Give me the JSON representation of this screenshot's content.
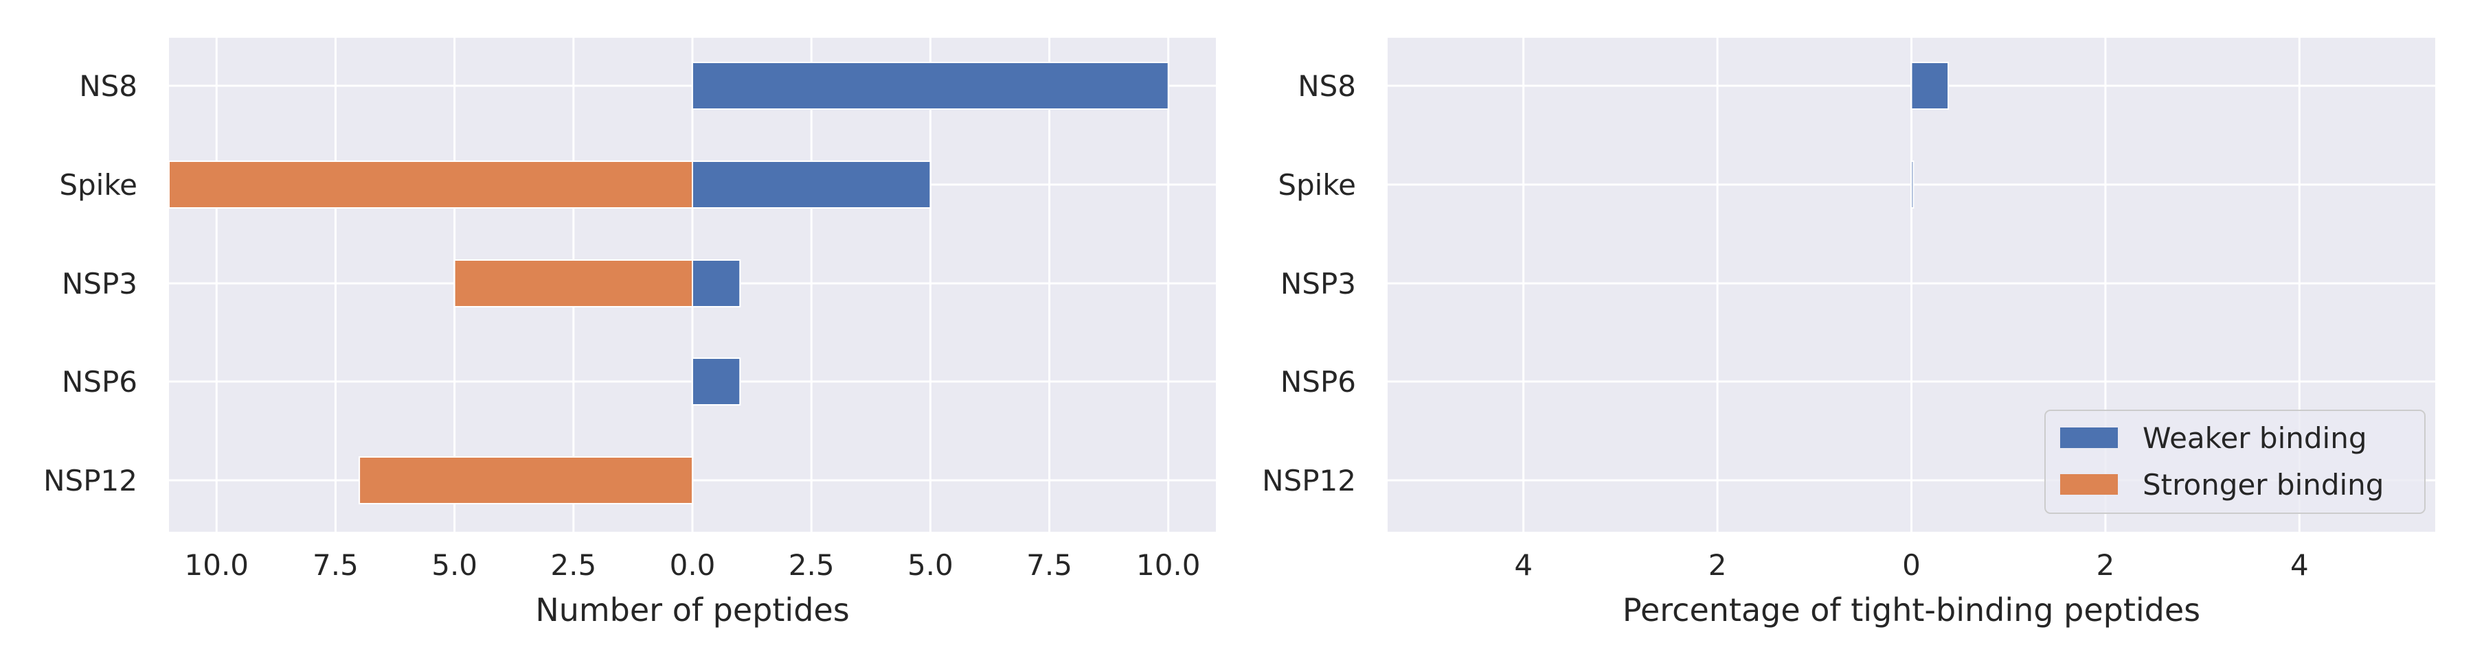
{
  "chart_data": [
    {
      "type": "bar",
      "orientation": "horizontal",
      "diverging": true,
      "categories": [
        "NS8",
        "Spike",
        "NSP3",
        "NSP6",
        "NSP12"
      ],
      "series": [
        {
          "name": "Weaker binding",
          "color": "#4c72b0",
          "values": [
            10,
            5,
            1,
            1,
            0
          ]
        },
        {
          "name": "Stronger binding",
          "color": "#dd8452",
          "values": [
            0,
            11,
            5,
            0,
            7
          ]
        }
      ],
      "xlabel": "Number of peptides",
      "xlim": [
        -11,
        11
      ],
      "xticks": [
        -10,
        -7.5,
        -5,
        -2.5,
        0,
        2.5,
        5,
        7.5,
        10
      ],
      "xtick_labels": [
        "10.0",
        "7.5",
        "5.0",
        "2.5",
        "0.0",
        "2.5",
        "5.0",
        "7.5",
        "10.0"
      ],
      "grid": true,
      "background": "#eaeaf2"
    },
    {
      "type": "bar",
      "orientation": "horizontal",
      "diverging": true,
      "categories": [
        "NS8",
        "Spike",
        "NSP3",
        "NSP6",
        "NSP12"
      ],
      "series": [
        {
          "name": "Weaker binding",
          "color": "#4c72b0",
          "values": [
            0.38,
            0.02,
            0,
            0,
            0
          ]
        },
        {
          "name": "Stronger binding",
          "color": "#dd8452",
          "values": [
            0,
            0,
            0,
            0,
            0
          ]
        }
      ],
      "xlabel": "Percentage of tight-binding peptides",
      "xlim": [
        -5.4,
        5.4
      ],
      "xticks": [
        -4,
        -2,
        0,
        2,
        4
      ],
      "xtick_labels": [
        "4",
        "2",
        "0",
        "2",
        "4"
      ],
      "grid": true,
      "legend": {
        "placement": "bottom-right",
        "entries": [
          "Weaker binding",
          "Stronger binding"
        ]
      },
      "background": "#eaeaf2"
    }
  ]
}
